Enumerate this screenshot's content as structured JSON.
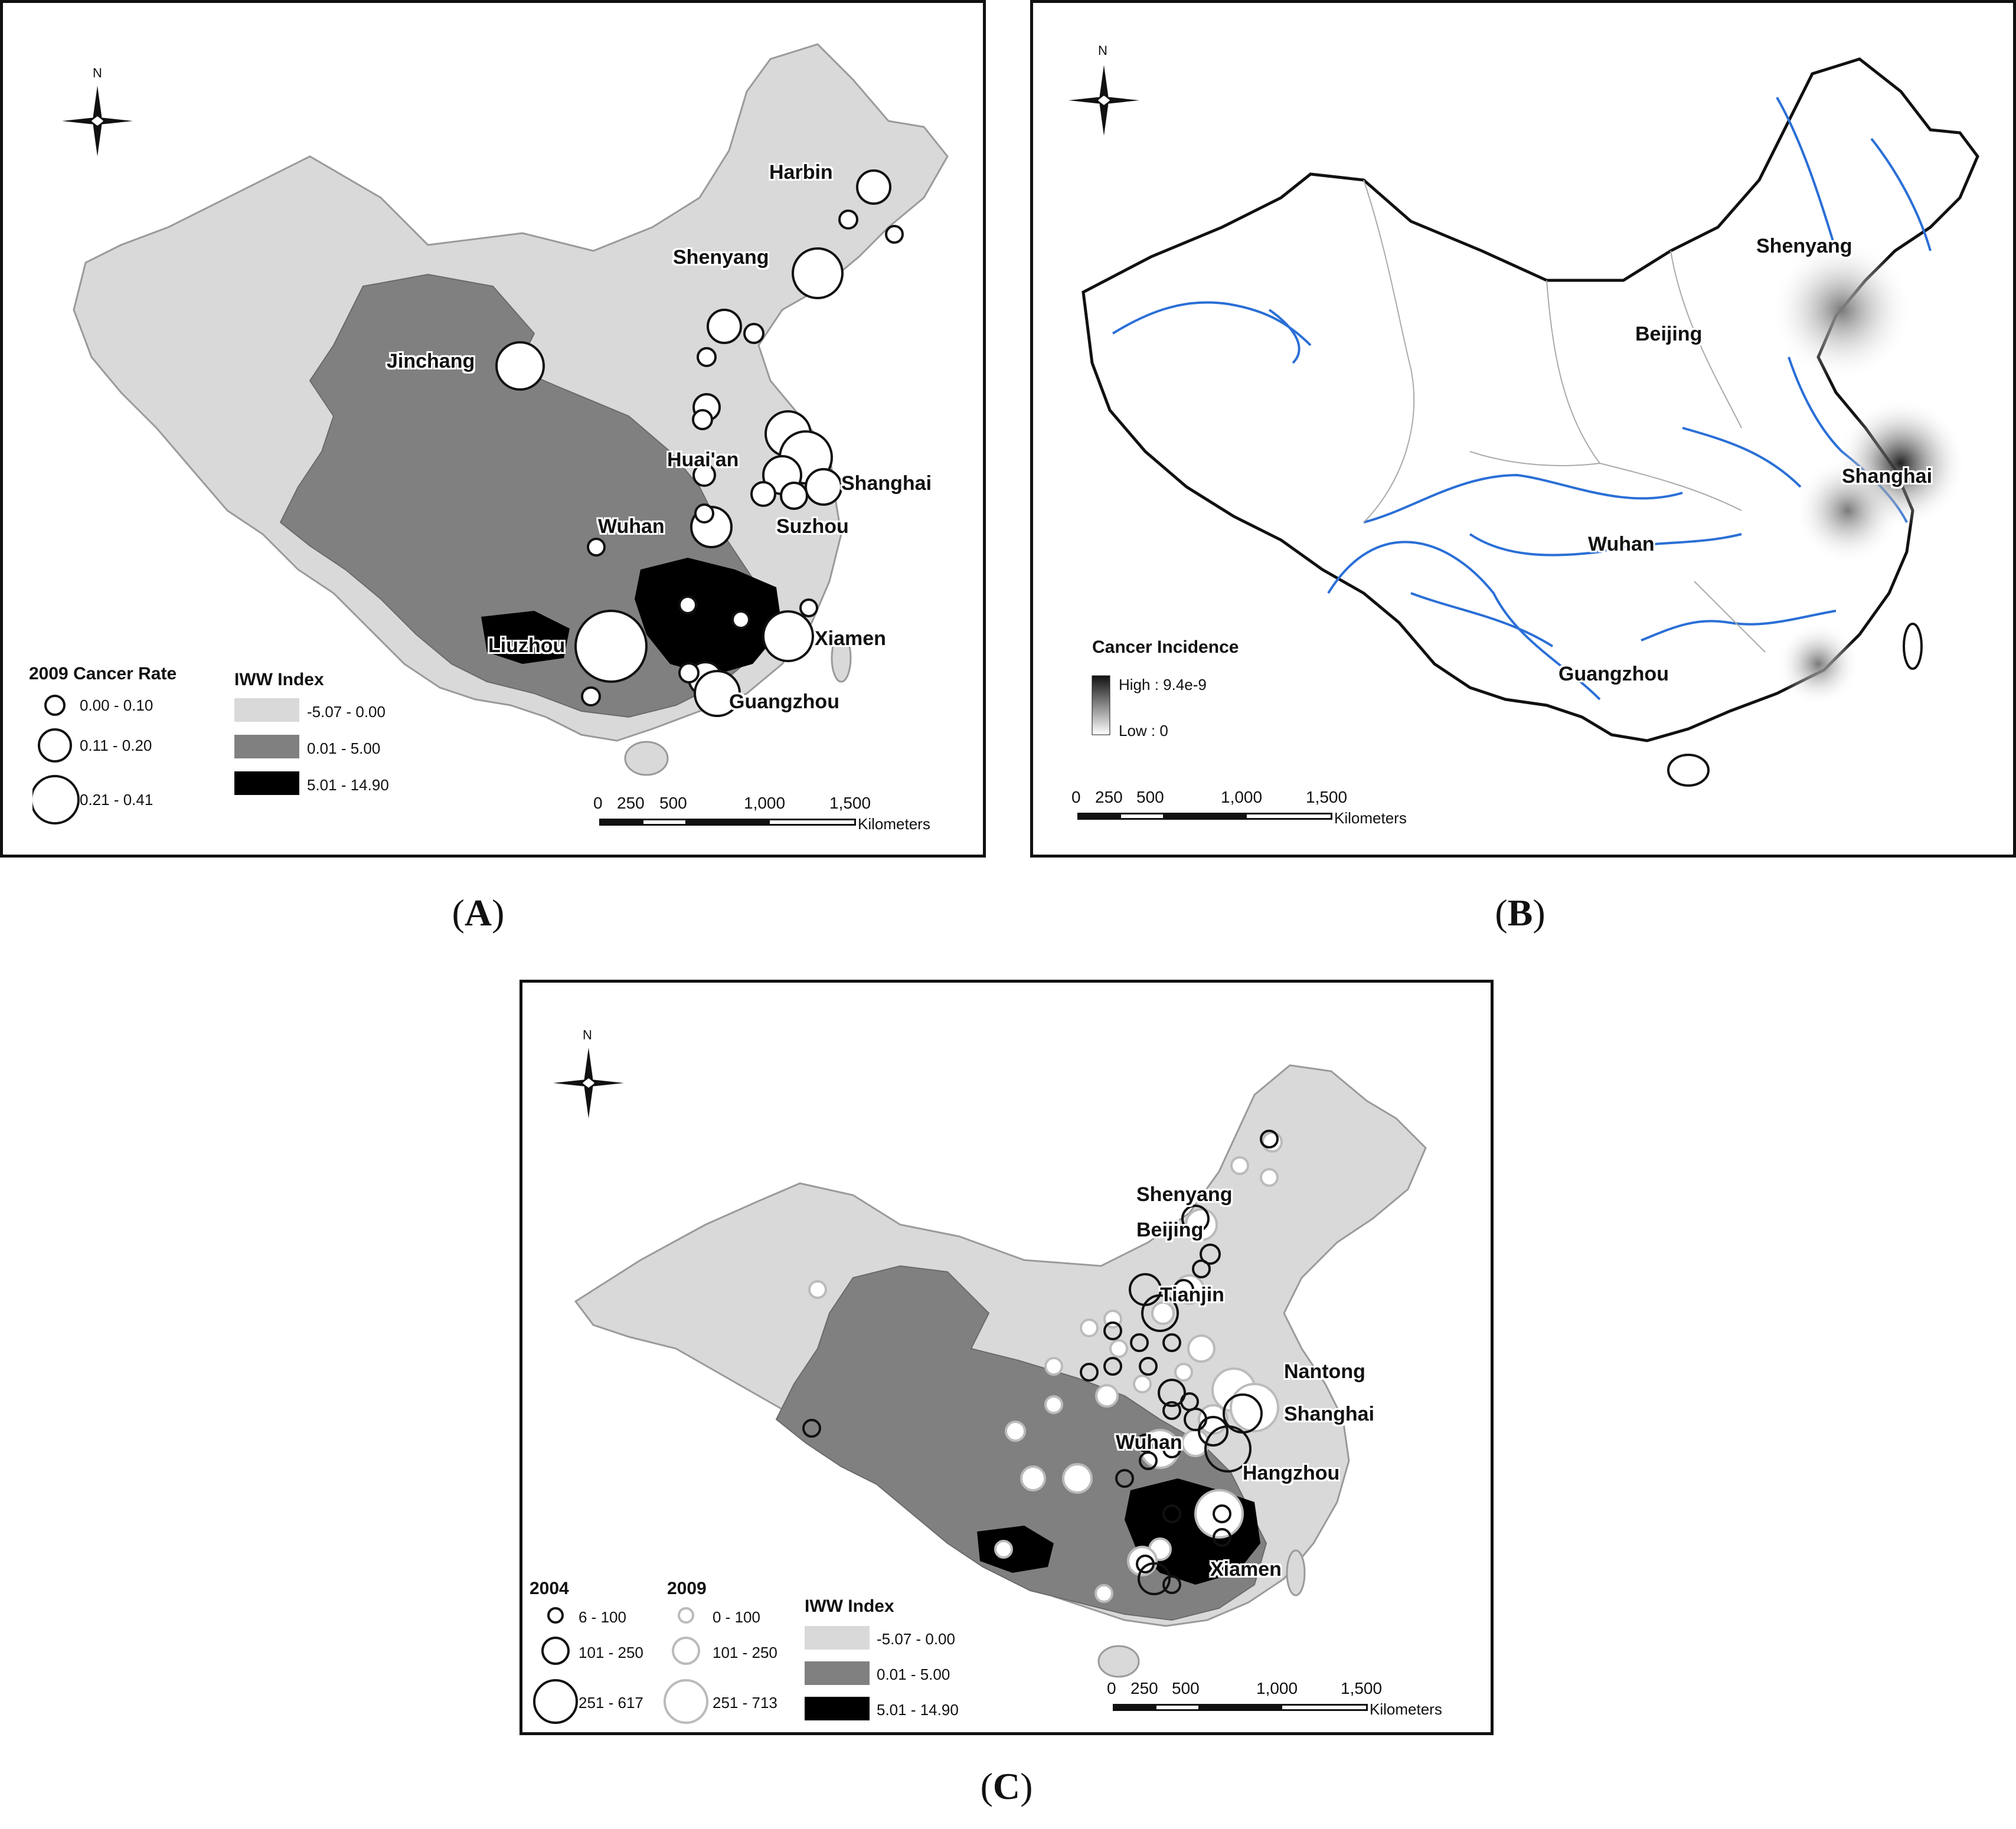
{
  "figure": {
    "captions": {
      "a": "A",
      "b": "B",
      "c": "C"
    }
  },
  "colors": {
    "iww_low": "#d9d9d9",
    "iww_mid": "#808080",
    "iww_high": "#000000",
    "river": "#2a6fd6",
    "ink": "#111111"
  },
  "panel_a": {
    "north": "N",
    "cities": {
      "harbin": "Harbin",
      "shenyang": "Shenyang",
      "jinchang": "Jinchang",
      "huaian": "Huai'an",
      "shanghai": "Shanghai",
      "wuhan": "Wuhan",
      "suzhou": "Suzhou",
      "liuzhou": "Liuzhou",
      "xiamen": "Xiamen",
      "guangzhou": "Guangzhou"
    },
    "legend_rate": {
      "title": "2009 Cancer Rate",
      "items": [
        "0.00 - 0.10",
        "0.11 - 0.20",
        "0.21 - 0.41"
      ]
    },
    "legend_iww": {
      "title": "IWW Index",
      "items": [
        "-5.07 - 0.00",
        "0.01 - 5.00",
        "5.01 - 14.90"
      ]
    },
    "scale": {
      "ticks": [
        "0",
        "250",
        "500",
        "1,000",
        "1,500"
      ],
      "unit": "Kilometers"
    }
  },
  "panel_b": {
    "north": "N",
    "cities": {
      "shenyang": "Shenyang",
      "beijing": "Beijing",
      "shanghai": "Shanghai",
      "wuhan": "Wuhan",
      "guangzhou": "Guangzhou"
    },
    "legend": {
      "title": "Cancer Incidence",
      "high": "High : 9.4e-9",
      "low": "Low : 0"
    },
    "scale": {
      "ticks": [
        "0",
        "250",
        "500",
        "1,000",
        "1,500"
      ],
      "unit": "Kilometers"
    }
  },
  "panel_c": {
    "north": "N",
    "cities": {
      "shenyang": "Shenyang",
      "beijing": "Beijing",
      "tianjin": "Tianjin",
      "nantong": "Nantong",
      "shanghai": "Shanghai",
      "wuhan": "Wuhan",
      "hangzhou": "Hangzhou",
      "xiamen": "Xiamen"
    },
    "legend_2004": {
      "title": "2004",
      "items": [
        "6 - 100",
        "101 - 250",
        "251 - 617"
      ]
    },
    "legend_2009": {
      "title": "2009",
      "items": [
        "0 - 100",
        "101 - 250",
        "251 - 713"
      ]
    },
    "legend_iww": {
      "title": "IWW Index",
      "items": [
        "-5.07 - 0.00",
        "0.01 - 5.00",
        "5.01 - 14.90"
      ]
    },
    "scale": {
      "ticks": [
        "0",
        "250",
        "500",
        "1,000",
        "1,500"
      ],
      "unit": "Kilometers"
    }
  }
}
